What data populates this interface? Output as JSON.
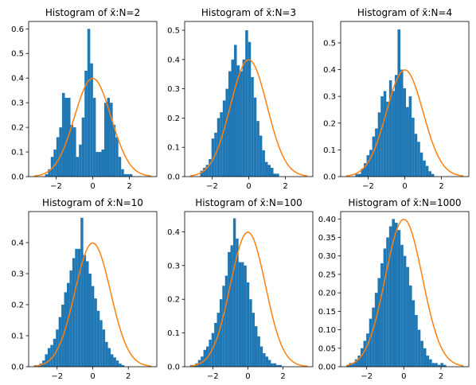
{
  "colors": {
    "bar": "#1f77b4",
    "curve": "#ff7f0e",
    "spine": "#000000",
    "background": "#ffffff"
  },
  "chart_data": [
    {
      "type": "bar",
      "title": "Histogram of x̄:N=2",
      "xlim": [
        -3.5,
        3.5
      ],
      "ylim": [
        0,
        0.63
      ],
      "xticks": [
        -2,
        0,
        2
      ],
      "yticks": [
        0.0,
        0.1,
        0.2,
        0.3,
        0.4,
        0.5,
        0.6
      ],
      "xticklabels": [
        "−2",
        "0",
        "2"
      ],
      "yticklabels": [
        "0.0",
        "0.1",
        "0.2",
        "0.3",
        "0.4",
        "0.5",
        "0.6"
      ],
      "bins": {
        "start": -2.6,
        "width": 0.1538,
        "values": [
          0.01,
          0.03,
          0.08,
          0.11,
          0.16,
          0.2,
          0.34,
          0.32,
          0.32,
          0.21,
          0.2,
          0.08,
          0.13,
          0.24,
          0.43,
          0.6,
          0.46,
          0.32,
          0.1,
          0.1,
          0.11,
          0.3,
          0.32,
          0.3,
          0.21,
          0.16,
          0.08,
          0.03,
          0.01,
          0.01,
          0.01
        ]
      },
      "curve": "standard normal pdf"
    },
    {
      "type": "bar",
      "title": "Histogram of x̄:N=3",
      "xlim": [
        -3.5,
        3.5
      ],
      "ylim": [
        0,
        0.53
      ],
      "xticks": [
        -2,
        0,
        2
      ],
      "yticks": [
        0.0,
        0.1,
        0.2,
        0.3,
        0.4,
        0.5
      ],
      "xticklabels": [
        "−2",
        "0",
        "2"
      ],
      "yticklabels": [
        "0.0",
        "0.1",
        "0.2",
        "0.3",
        "0.4",
        "0.5"
      ],
      "bins": {
        "start": -2.65,
        "width": 0.1538,
        "values": [
          0.02,
          0.03,
          0.04,
          0.06,
          0.13,
          0.15,
          0.2,
          0.22,
          0.26,
          0.3,
          0.36,
          0.4,
          0.45,
          0.38,
          0.36,
          0.4,
          0.5,
          0.46,
          0.34,
          0.27,
          0.19,
          0.14,
          0.09,
          0.05,
          0.04,
          0.03,
          0.01,
          0.01
        ]
      },
      "curve": "standard normal pdf"
    },
    {
      "type": "bar",
      "title": "Histogram of x̄:N=4",
      "xlim": [
        -3.5,
        3.5
      ],
      "ylim": [
        0,
        0.58
      ],
      "xticks": [
        -2,
        0,
        2
      ],
      "yticks": [
        0.0,
        0.1,
        0.2,
        0.3,
        0.4,
        0.5
      ],
      "xticklabels": [
        "−2",
        "0",
        "2"
      ],
      "yticklabels": [
        "0.0",
        "0.1",
        "0.2",
        "0.3",
        "0.4",
        "0.5"
      ],
      "bins": {
        "start": -2.7,
        "width": 0.1538,
        "values": [
          0.01,
          0.01,
          0.03,
          0.05,
          0.08,
          0.1,
          0.15,
          0.18,
          0.24,
          0.3,
          0.32,
          0.28,
          0.36,
          0.32,
          0.38,
          0.55,
          0.4,
          0.33,
          0.26,
          0.3,
          0.22,
          0.16,
          0.13,
          0.09,
          0.06,
          0.04,
          0.02,
          0.01
        ]
      },
      "curve": "standard normal pdf"
    },
    {
      "type": "bar",
      "title": "Histogram of x̄:N=10",
      "xlim": [
        -3.6,
        3.6
      ],
      "ylim": [
        0,
        0.5
      ],
      "xticks": [
        -2,
        0,
        2
      ],
      "yticks": [
        0.0,
        0.1,
        0.2,
        0.3,
        0.4
      ],
      "xticklabels": [
        "−2",
        "0",
        "2"
      ],
      "yticklabels": [
        "0.0",
        "0.1",
        "0.2",
        "0.3",
        "0.4"
      ],
      "bins": {
        "start": -3.3,
        "width": 0.1538,
        "values": [
          0.005,
          0.005,
          0.01,
          0.02,
          0.04,
          0.06,
          0.07,
          0.09,
          0.12,
          0.16,
          0.2,
          0.24,
          0.27,
          0.31,
          0.35,
          0.38,
          0.38,
          0.48,
          0.36,
          0.34,
          0.3,
          0.26,
          0.22,
          0.18,
          0.15,
          0.12,
          0.08,
          0.06,
          0.04,
          0.03,
          0.02,
          0.01,
          0.005
        ]
      },
      "curve": "standard normal pdf"
    },
    {
      "type": "bar",
      "title": "Histogram of x̄:N=100",
      "xlim": [
        -3.6,
        3.7
      ],
      "ylim": [
        0,
        0.46
      ],
      "xticks": [
        -2,
        0,
        2
      ],
      "yticks": [
        0.0,
        0.1,
        0.2,
        0.3,
        0.4
      ],
      "xticklabels": [
        "−2",
        "0",
        "2"
      ],
      "yticklabels": [
        "0.0",
        "0.1",
        "0.2",
        "0.3",
        "0.4"
      ],
      "bins": {
        "start": -3.3,
        "width": 0.1538,
        "values": [
          0.005,
          0.005,
          0.01,
          0.02,
          0.03,
          0.05,
          0.06,
          0.08,
          0.1,
          0.13,
          0.16,
          0.2,
          0.24,
          0.27,
          0.34,
          0.36,
          0.44,
          0.38,
          0.31,
          0.31,
          0.3,
          0.25,
          0.2,
          0.16,
          0.12,
          0.09,
          0.06,
          0.04,
          0.03,
          0.02,
          0.01,
          0.01,
          0.005,
          0.005
        ]
      },
      "curve": "standard normal pdf"
    },
    {
      "type": "bar",
      "title": "Histogram of x̄:N=1000",
      "xlim": [
        -3.4,
        3.5
      ],
      "ylim": [
        0,
        0.42
      ],
      "xticks": [
        -2,
        0,
        2
      ],
      "yticks": [
        0.0,
        0.05,
        0.1,
        0.15,
        0.2,
        0.25,
        0.3,
        0.35,
        0.4
      ],
      "xticklabels": [
        "−2",
        "0",
        "2"
      ],
      "yticklabels": [
        "0.00",
        "0.05",
        "0.10",
        "0.15",
        "0.20",
        "0.25",
        "0.30",
        "0.35",
        "0.40"
      ],
      "bins": {
        "start": -3.1,
        "width": 0.1538,
        "values": [
          0.005,
          0.01,
          0.01,
          0.02,
          0.03,
          0.05,
          0.07,
          0.09,
          0.13,
          0.16,
          0.2,
          0.24,
          0.28,
          0.32,
          0.35,
          0.38,
          0.4,
          0.39,
          0.37,
          0.33,
          0.3,
          0.27,
          0.22,
          0.18,
          0.14,
          0.1,
          0.07,
          0.05,
          0.03,
          0.02,
          0.01,
          0.01,
          0.005,
          0.01,
          0.005
        ]
      },
      "curve": "standard normal pdf"
    }
  ]
}
